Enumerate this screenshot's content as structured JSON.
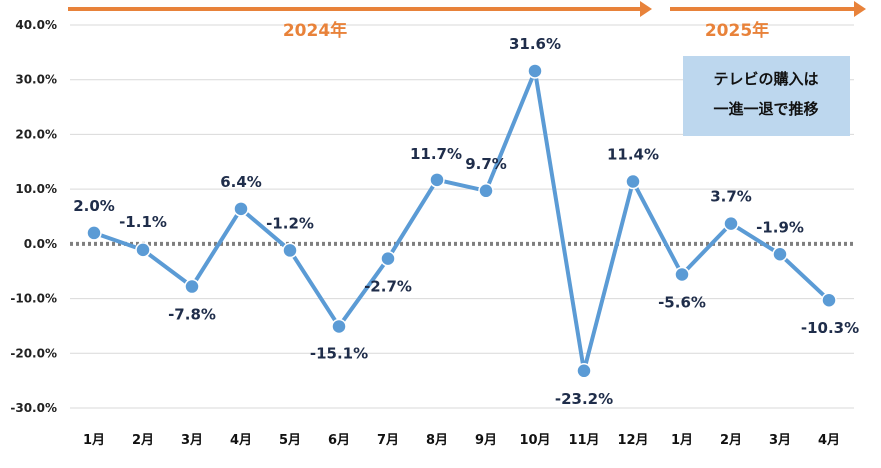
{
  "chart_data": {
    "type": "line",
    "categories": [
      "1月",
      "2月",
      "3月",
      "4月",
      "5月",
      "6月",
      "7月",
      "8月",
      "9月",
      "10月",
      "11月",
      "12月",
      "1月",
      "2月",
      "3月",
      "4月"
    ],
    "values": [
      2.0,
      -1.1,
      -7.8,
      6.4,
      -1.2,
      -15.1,
      -2.7,
      11.7,
      9.7,
      31.6,
      -23.2,
      11.4,
      -5.6,
      3.7,
      -1.9,
      -10.3
    ],
    "data_labels": [
      "2.0%",
      "-1.1%",
      "-7.8%",
      "6.4%",
      "-1.2%",
      "-15.1%",
      "-2.7%",
      "11.7%",
      "9.7%",
      "31.6%",
      "-23.2%",
      "11.4%",
      "-5.6%",
      "3.7%",
      "-1.9%",
      "-10.3%"
    ],
    "yticks": [
      40,
      30,
      20,
      10,
      0,
      -10,
      -20,
      -30
    ],
    "ytick_labels": [
      "40.0%",
      "30.0%",
      "20.0%",
      "10.0%",
      "0.0%",
      "-10.0%",
      "-20.0%",
      "-30.0%"
    ],
    "ylim": [
      -30,
      40
    ],
    "grid": true,
    "zero_line": "dotted",
    "title": "",
    "xlabel": "",
    "ylabel": "",
    "year_groups": [
      {
        "label": "2024年",
        "start_index": 0,
        "end_index": 11
      },
      {
        "label": "2025年",
        "start_index": 12,
        "end_index": 15
      }
    ],
    "callout_lines": [
      "テレビの購入は",
      "一進一退で推移"
    ]
  },
  "colors": {
    "line": "#5b9bd5",
    "marker": "#5b9bd5",
    "marker_edge": "#ffffff",
    "arrow": "#e8823a",
    "callout_bg": "#bdd7ee",
    "grid": "#d9d9d9",
    "zero_line": "#7f7f7f",
    "data_label": "#1f2d4a"
  }
}
